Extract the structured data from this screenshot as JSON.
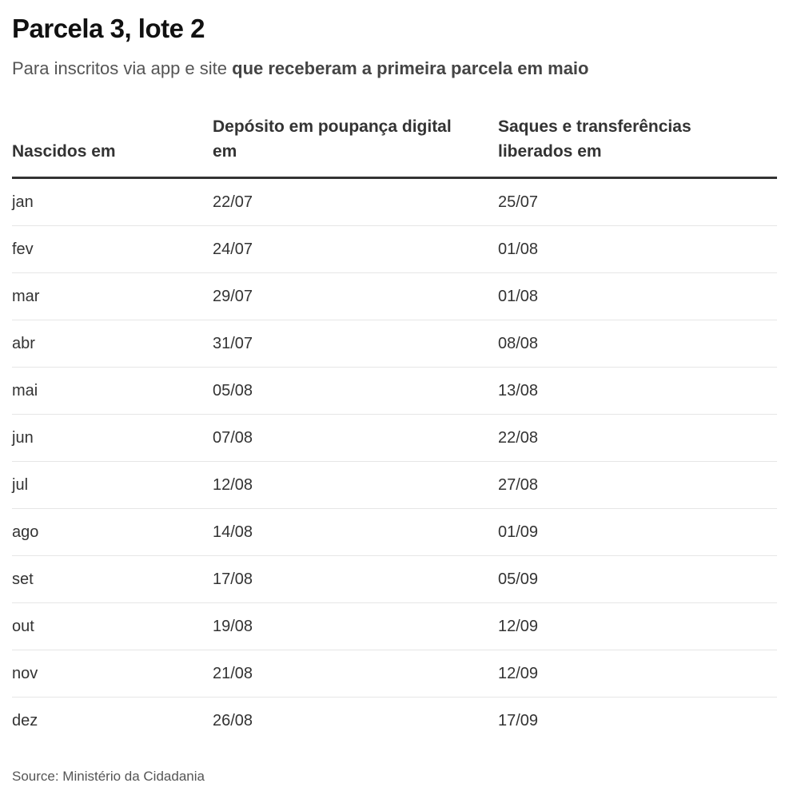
{
  "title": "Parcela 3, lote 2",
  "subtitle": {
    "prefix": "Para inscritos via app e site ",
    "emphasis": "que receberam a primeira parcela em maio"
  },
  "table": {
    "headers": [
      "Nascidos em",
      "Depósito em poupança digital em",
      "Saques e transferências liberados em"
    ],
    "rows": [
      [
        "jan",
        "22/07",
        "25/07"
      ],
      [
        "fev",
        "24/07",
        "01/08"
      ],
      [
        "mar",
        "29/07",
        "01/08"
      ],
      [
        "abr",
        "31/07",
        "08/08"
      ],
      [
        "mai",
        "05/08",
        "13/08"
      ],
      [
        "jun",
        "07/08",
        "22/08"
      ],
      [
        "jul",
        "12/08",
        "27/08"
      ],
      [
        "ago",
        "14/08",
        "01/09"
      ],
      [
        "set",
        "17/08",
        "05/09"
      ],
      [
        "out",
        "19/08",
        "12/09"
      ],
      [
        "nov",
        "21/08",
        "12/09"
      ],
      [
        "dez",
        "26/08",
        "17/09"
      ]
    ]
  },
  "source": "Source: Ministério da Cidadania"
}
